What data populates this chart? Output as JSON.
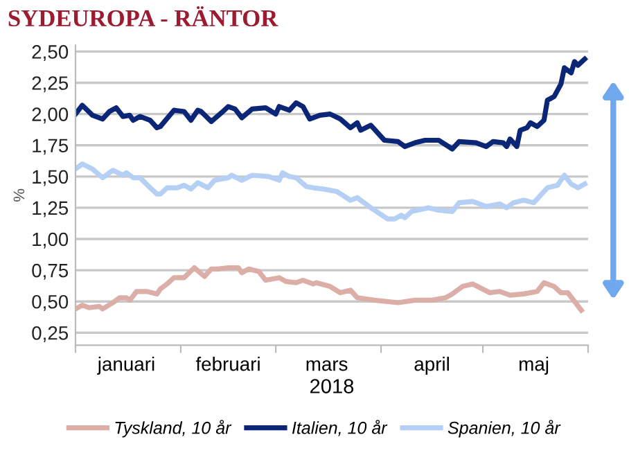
{
  "chart_data": {
    "type": "line",
    "title": "SYDEUROPA - RÄNTOR",
    "ylabel": "%",
    "xlabel": "2018",
    "xlim": [
      "2018-01-01",
      "2018-06-01"
    ],
    "xticks": [
      {
        "value": "2018-01-01",
        "label": null
      },
      {
        "value": "2018-01-16",
        "label": "januari"
      },
      {
        "value": "2018-02-01",
        "label": null
      },
      {
        "value": "2018-02-15",
        "label": "februari"
      },
      {
        "value": "2018-03-01",
        "label": null
      },
      {
        "value": "2018-03-16",
        "label": "mars"
      },
      {
        "value": "2018-04-01",
        "label": null
      },
      {
        "value": "2018-04-16",
        "label": "april"
      },
      {
        "value": "2018-05-01",
        "label": null
      },
      {
        "value": "2018-05-16",
        "label": "maj"
      },
      {
        "value": "2018-06-01",
        "label": null
      }
    ],
    "ylim": [
      0.15,
      2.55
    ],
    "yticks": [
      {
        "value": 0.25,
        "label": "0,25"
      },
      {
        "value": 0.5,
        "label": "0,50"
      },
      {
        "value": 0.75,
        "label": "0,75"
      },
      {
        "value": 1.0,
        "label": "1,00"
      },
      {
        "value": 1.25,
        "label": "1,25"
      },
      {
        "value": 1.5,
        "label": "1,50"
      },
      {
        "value": 1.75,
        "label": "1,75"
      },
      {
        "value": 2.0,
        "label": "2,00"
      },
      {
        "value": 2.25,
        "label": "2,25"
      },
      {
        "value": 2.5,
        "label": "2,50"
      }
    ],
    "grid": "y",
    "legend": "bottom",
    "marker": "none",
    "line_style": "solid",
    "series": [
      {
        "name": "Tyskland, 10 år",
        "color": "#dcaea8",
        "x": [
          "2018-01-01",
          "2018-01-03",
          "2018-01-05",
          "2018-01-08",
          "2018-01-09",
          "2018-01-12",
          "2018-01-14",
          "2018-01-16",
          "2018-01-17",
          "2018-01-19",
          "2018-01-22",
          "2018-01-25",
          "2018-01-26",
          "2018-01-28",
          "2018-01-30",
          "2018-02-02",
          "2018-02-05",
          "2018-02-08",
          "2018-02-10",
          "2018-02-12",
          "2018-02-15",
          "2018-02-18",
          "2018-02-19",
          "2018-02-21",
          "2018-02-24",
          "2018-02-26",
          "2018-03-02",
          "2018-03-04",
          "2018-03-07",
          "2018-03-09",
          "2018-03-12",
          "2018-03-13",
          "2018-03-17",
          "2018-03-20",
          "2018-03-23",
          "2018-03-25",
          "2018-03-30",
          "2018-04-06",
          "2018-04-11",
          "2018-04-16",
          "2018-04-20",
          "2018-04-22",
          "2018-04-25",
          "2018-04-28",
          "2018-05-03",
          "2018-05-06",
          "2018-05-09",
          "2018-05-13",
          "2018-05-17",
          "2018-05-19",
          "2018-05-22",
          "2018-05-24",
          "2018-05-26",
          "2018-05-30"
        ],
        "values": [
          0.44,
          0.47,
          0.45,
          0.46,
          0.44,
          0.49,
          0.53,
          0.53,
          0.51,
          0.58,
          0.58,
          0.56,
          0.6,
          0.64,
          0.69,
          0.69,
          0.77,
          0.7,
          0.76,
          0.76,
          0.77,
          0.77,
          0.73,
          0.76,
          0.74,
          0.67,
          0.69,
          0.66,
          0.65,
          0.67,
          0.64,
          0.65,
          0.62,
          0.57,
          0.59,
          0.53,
          0.51,
          0.49,
          0.51,
          0.51,
          0.53,
          0.56,
          0.62,
          0.64,
          0.57,
          0.58,
          0.55,
          0.56,
          0.58,
          0.65,
          0.62,
          0.57,
          0.57,
          0.43
        ]
      },
      {
        "name": "Italien, 10 år",
        "color": "#0c2677",
        "x": [
          "2018-01-01",
          "2018-01-03",
          "2018-01-06",
          "2018-01-09",
          "2018-01-11",
          "2018-01-13",
          "2018-01-15",
          "2018-01-17",
          "2018-01-18",
          "2018-01-20",
          "2018-01-23",
          "2018-01-25",
          "2018-01-26",
          "2018-01-30",
          "2018-02-02",
          "2018-02-04",
          "2018-02-06",
          "2018-02-07",
          "2018-02-10",
          "2018-02-13",
          "2018-02-15",
          "2018-02-17",
          "2018-02-19",
          "2018-02-22",
          "2018-02-26",
          "2018-03-01",
          "2018-03-02",
          "2018-03-05",
          "2018-03-07",
          "2018-03-09",
          "2018-03-11",
          "2018-03-14",
          "2018-03-17",
          "2018-03-20",
          "2018-03-23",
          "2018-03-25",
          "2018-03-26",
          "2018-03-29",
          "2018-04-02",
          "2018-04-06",
          "2018-04-08",
          "2018-04-11",
          "2018-04-14",
          "2018-04-18",
          "2018-04-22",
          "2018-04-24",
          "2018-04-29",
          "2018-05-02",
          "2018-05-04",
          "2018-05-07",
          "2018-05-08",
          "2018-05-09",
          "2018-05-11",
          "2018-05-12",
          "2018-05-14",
          "2018-05-15",
          "2018-05-17",
          "2018-05-19",
          "2018-05-20",
          "2018-05-22",
          "2018-05-24",
          "2018-05-25",
          "2018-05-27",
          "2018-05-28",
          "2018-05-29",
          "2018-05-31"
        ],
        "values": [
          2.0,
          2.07,
          1.99,
          1.96,
          2.02,
          2.05,
          1.98,
          1.99,
          1.95,
          1.98,
          1.95,
          1.89,
          1.9,
          2.03,
          2.02,
          1.95,
          2.03,
          2.02,
          1.94,
          2.01,
          2.06,
          2.04,
          1.97,
          2.04,
          2.05,
          2.0,
          2.06,
          2.03,
          2.09,
          2.06,
          1.96,
          1.99,
          2.0,
          1.96,
          1.89,
          1.93,
          1.87,
          1.91,
          1.79,
          1.78,
          1.74,
          1.77,
          1.79,
          1.79,
          1.72,
          1.78,
          1.77,
          1.74,
          1.78,
          1.77,
          1.74,
          1.8,
          1.74,
          1.87,
          1.89,
          1.93,
          1.9,
          1.95,
          2.11,
          2.14,
          2.24,
          2.37,
          2.33,
          2.42,
          2.39,
          2.44
        ]
      },
      {
        "name": "Spanien, 10 år",
        "color": "#b5cff5",
        "x": [
          "2018-01-01",
          "2018-01-03",
          "2018-01-06",
          "2018-01-09",
          "2018-01-12",
          "2018-01-15",
          "2018-01-16",
          "2018-01-18",
          "2018-01-20",
          "2018-01-23",
          "2018-01-25",
          "2018-01-26",
          "2018-01-28",
          "2018-01-31",
          "2018-02-02",
          "2018-02-04",
          "2018-02-06",
          "2018-02-09",
          "2018-02-11",
          "2018-02-15",
          "2018-02-16",
          "2018-02-19",
          "2018-02-22",
          "2018-02-27",
          "2018-03-02",
          "2018-03-03",
          "2018-03-05",
          "2018-03-07",
          "2018-03-10",
          "2018-03-12",
          "2018-03-15",
          "2018-03-19",
          "2018-03-23",
          "2018-03-25",
          "2018-03-29",
          "2018-04-03",
          "2018-04-05",
          "2018-04-07",
          "2018-04-08",
          "2018-04-10",
          "2018-04-15",
          "2018-04-18",
          "2018-04-22",
          "2018-04-24",
          "2018-04-28",
          "2018-05-02",
          "2018-05-06",
          "2018-05-08",
          "2018-05-10",
          "2018-05-13",
          "2018-05-16",
          "2018-05-20",
          "2018-05-23",
          "2018-05-25",
          "2018-05-27",
          "2018-05-29",
          "2018-05-31"
        ],
        "values": [
          1.56,
          1.6,
          1.56,
          1.49,
          1.55,
          1.51,
          1.53,
          1.49,
          1.49,
          1.41,
          1.36,
          1.36,
          1.41,
          1.41,
          1.43,
          1.4,
          1.45,
          1.41,
          1.47,
          1.49,
          1.51,
          1.47,
          1.51,
          1.5,
          1.47,
          1.53,
          1.5,
          1.49,
          1.42,
          1.41,
          1.4,
          1.38,
          1.31,
          1.33,
          1.25,
          1.16,
          1.16,
          1.19,
          1.17,
          1.22,
          1.25,
          1.23,
          1.22,
          1.29,
          1.3,
          1.26,
          1.28,
          1.25,
          1.29,
          1.31,
          1.29,
          1.41,
          1.43,
          1.51,
          1.44,
          1.41,
          1.44
        ]
      }
    ]
  }
}
